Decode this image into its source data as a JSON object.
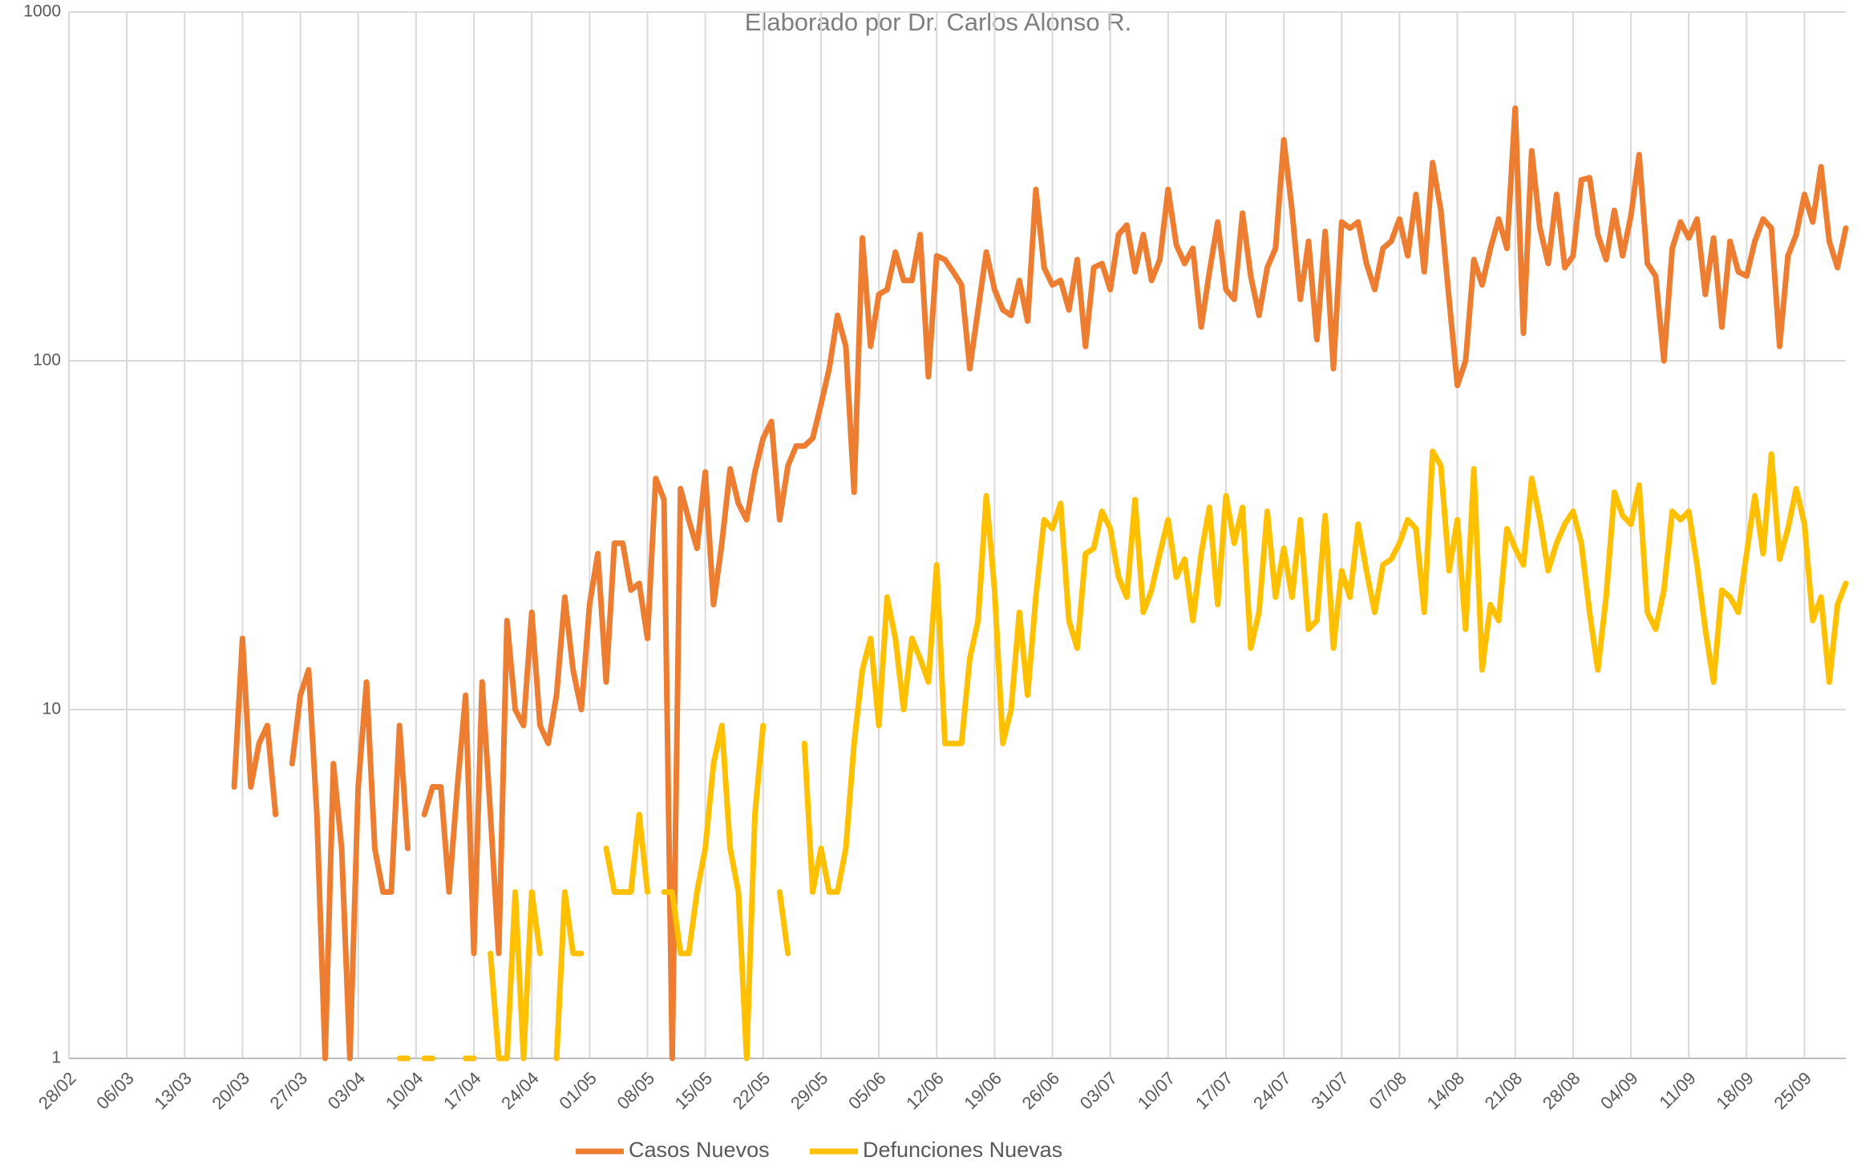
{
  "chart_data": {
    "type": "line",
    "subtitle": "Elaborado por Dr. Carlos Alonso R.",
    "categories": [
      "28/02",
      null,
      null,
      null,
      null,
      null,
      null,
      "06/03",
      null,
      null,
      null,
      null,
      null,
      null,
      "13/03",
      null,
      null,
      null,
      null,
      null,
      null,
      "20/03",
      null,
      null,
      null,
      null,
      null,
      null,
      "27/03",
      null,
      null,
      null,
      null,
      null,
      null,
      "03/04",
      null,
      null,
      null,
      null,
      null,
      null,
      "10/04",
      null,
      null,
      null,
      null,
      null,
      null,
      "17/04",
      null,
      null,
      null,
      null,
      null,
      null,
      "24/04",
      null,
      null,
      null,
      null,
      null,
      null,
      "01/05",
      null,
      null,
      null,
      null,
      null,
      null,
      "08/05",
      null,
      null,
      null,
      null,
      null,
      null,
      "15/05",
      null,
      null,
      null,
      null,
      null,
      null,
      "22/05",
      null,
      null,
      null,
      null,
      null,
      null,
      "29/05",
      null,
      null,
      null,
      null,
      null,
      null,
      "05/06",
      null,
      null,
      null,
      null,
      null,
      null,
      "12/06",
      null,
      null,
      null,
      null,
      null,
      null,
      "19/06",
      null,
      null,
      null,
      null,
      null,
      null,
      "26/06",
      null,
      null,
      null,
      null,
      null,
      null,
      "03/07",
      null,
      null,
      null,
      null,
      null,
      null,
      "10/07",
      null,
      null,
      null,
      null,
      null,
      null,
      "17/07",
      null,
      null,
      null,
      null,
      null,
      null,
      "24/07",
      null,
      null,
      null,
      null,
      null,
      null,
      "31/07",
      null,
      null,
      null,
      null,
      null,
      null,
      "07/08",
      null,
      null,
      null,
      null,
      null,
      null,
      "14/08",
      null,
      null,
      null,
      null,
      null,
      null,
      "21/08",
      null,
      null,
      null,
      null,
      null,
      null,
      "28/08",
      null,
      null,
      null,
      null,
      null,
      null,
      "04/09",
      null,
      null,
      null,
      null,
      null,
      null,
      "11/09",
      null,
      null,
      null,
      null,
      null,
      null,
      "18/09",
      null,
      null,
      null,
      null,
      null,
      null,
      "25/09",
      null,
      null,
      null,
      null,
      null
    ],
    "series": [
      {
        "name": "Casos Nuevos",
        "color": "#ED7D31",
        "values": [
          null,
          null,
          null,
          null,
          null,
          null,
          null,
          null,
          null,
          null,
          null,
          null,
          null,
          null,
          null,
          null,
          null,
          null,
          null,
          null,
          6,
          16,
          6,
          8,
          9,
          5,
          null,
          7,
          11,
          13,
          5,
          1,
          7,
          4,
          1,
          6,
          12,
          4,
          3,
          3,
          9,
          4,
          null,
          5,
          6,
          6,
          3,
          6,
          11,
          2,
          12,
          5,
          2,
          18,
          10,
          9,
          19,
          9,
          8,
          11,
          21,
          13,
          10,
          20,
          28,
          12,
          30,
          30,
          22,
          23,
          16,
          46,
          40,
          1,
          43,
          35,
          29,
          48,
          20,
          30,
          49,
          39,
          35,
          48,
          60,
          67,
          35,
          50,
          57,
          57,
          60,
          75,
          95,
          135,
          110,
          42,
          225,
          110,
          155,
          160,
          205,
          170,
          170,
          230,
          90,
          200,
          195,
          180,
          165,
          95,
          140,
          205,
          160,
          140,
          135,
          170,
          130,
          310,
          185,
          165,
          170,
          140,
          195,
          110,
          185,
          190,
          160,
          230,
          245,
          180,
          230,
          170,
          195,
          310,
          215,
          190,
          210,
          125,
          180,
          250,
          160,
          150,
          265,
          175,
          135,
          185,
          210,
          430,
          270,
          150,
          220,
          115,
          235,
          95,
          250,
          240,
          250,
          190,
          160,
          210,
          220,
          255,
          200,
          300,
          180,
          370,
          270,
          150,
          85,
          100,
          195,
          165,
          210,
          255,
          210,
          530,
          120,
          400,
          240,
          190,
          300,
          185,
          200,
          330,
          335,
          230,
          195,
          270,
          200,
          260,
          390,
          190,
          175,
          100,
          210,
          250,
          225,
          255,
          155,
          225,
          125,
          220,
          180,
          175,
          220,
          255,
          240,
          110,
          200,
          230,
          300,
          250,
          360,
          220,
          185,
          240
        ]
      },
      {
        "name": "Defunciones Nuevas",
        "color": "#FFC000",
        "values": [
          null,
          null,
          null,
          null,
          null,
          null,
          null,
          null,
          null,
          null,
          null,
          null,
          null,
          null,
          null,
          null,
          null,
          null,
          null,
          null,
          null,
          null,
          null,
          null,
          null,
          null,
          null,
          null,
          null,
          null,
          null,
          null,
          null,
          null,
          null,
          null,
          null,
          null,
          null,
          null,
          1,
          1,
          null,
          1,
          1,
          null,
          null,
          null,
          1,
          1,
          null,
          2,
          1,
          1,
          3,
          1,
          3,
          2,
          null,
          1,
          3,
          2,
          2,
          null,
          null,
          4,
          3,
          3,
          3,
          5,
          3,
          null,
          3,
          3,
          2,
          2,
          3,
          4,
          7,
          9,
          4,
          3,
          1,
          5,
          9,
          null,
          3,
          2,
          null,
          8,
          3,
          4,
          3,
          3,
          4,
          8,
          13,
          16,
          9,
          21,
          16,
          10,
          16,
          14,
          12,
          26,
          8,
          8,
          8,
          14,
          18,
          41,
          22,
          8,
          10,
          19,
          11,
          21,
          35,
          33,
          39,
          18,
          15,
          28,
          29,
          37,
          33,
          24,
          21,
          40,
          19,
          22,
          28,
          35,
          24,
          27,
          18,
          28,
          38,
          20,
          41,
          30,
          38,
          15,
          19,
          37,
          21,
          29,
          21,
          35,
          17,
          18,
          36,
          15,
          25,
          21,
          34,
          25,
          19,
          26,
          27,
          30,
          35,
          33,
          19,
          55,
          50,
          25,
          35,
          17,
          49,
          13,
          20,
          18,
          33,
          29,
          26,
          46,
          35,
          25,
          30,
          34,
          37,
          30,
          19,
          13,
          21,
          42,
          36,
          34,
          44,
          19,
          17,
          22,
          37,
          35,
          37,
          26,
          17,
          12,
          22,
          21,
          19,
          28,
          41,
          28,
          54,
          27,
          33,
          43,
          34,
          18,
          21,
          12,
          20,
          23
        ]
      }
    ],
    "ylim": [
      1,
      1000
    ],
    "yticks": [
      1,
      10,
      100,
      1000
    ],
    "log_scale": true,
    "grid": true,
    "legend": "bottom"
  }
}
